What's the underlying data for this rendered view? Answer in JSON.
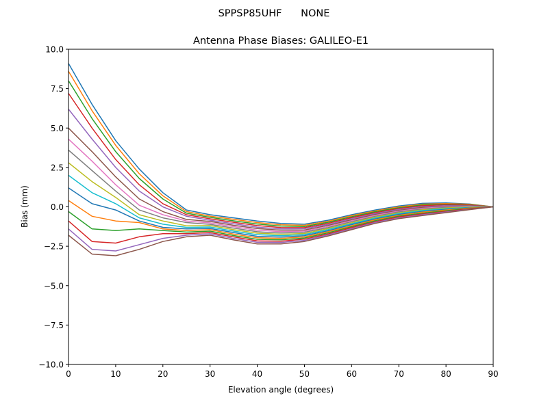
{
  "suptitle": "SPPSP85UHF      NONE",
  "chart_data": {
    "type": "line",
    "title": "Antenna Phase Biases: GALILEO-E1",
    "xlabel": "Elevation angle (degrees)",
    "ylabel": "Bias (mm)",
    "xlim": [
      0,
      90
    ],
    "ylim": [
      -10,
      10
    ],
    "xticks": [
      0,
      10,
      20,
      30,
      40,
      50,
      60,
      70,
      80,
      90
    ],
    "yticks": [
      -10,
      -7.5,
      -5,
      -2.5,
      0,
      2.5,
      5,
      7.5,
      10
    ],
    "ytick_labels": [
      "−10.0",
      "−7.5",
      "−5.0",
      "−2.5",
      "0.0",
      "2.5",
      "5.0",
      "7.5",
      "10.0"
    ],
    "grid": false,
    "legend": "none",
    "colors": [
      "#1f77b4",
      "#ff7f0e",
      "#2ca02c",
      "#d62728",
      "#9467bd",
      "#8c564b",
      "#e377c2",
      "#7f7f7f",
      "#bcbd22",
      "#17becf"
    ],
    "x": [
      0,
      5,
      10,
      15,
      20,
      25,
      30,
      35,
      40,
      45,
      50,
      55,
      60,
      65,
      70,
      75,
      80,
      85,
      90
    ],
    "series": [
      {
        "values": [
          9.1,
          6.5,
          4.2,
          2.4,
          0.9,
          -0.2,
          -0.5,
          -0.7,
          -0.9,
          -1.05,
          -1.1,
          -0.85,
          -0.5,
          -0.2,
          0.05,
          0.22,
          0.25,
          0.18,
          0
        ]
      },
      {
        "values": [
          8.6,
          6.1,
          3.9,
          2.1,
          0.7,
          -0.3,
          -0.59,
          -0.79,
          -1.0,
          -1.14,
          -1.17,
          -0.92,
          -0.56,
          -0.26,
          0.0,
          0.17,
          0.21,
          0.16,
          0
        ]
      },
      {
        "values": [
          8.0,
          5.6,
          3.5,
          1.8,
          0.5,
          -0.4,
          -0.67,
          -0.89,
          -1.09,
          -1.22,
          -1.25,
          -0.98,
          -0.63,
          -0.31,
          -0.06,
          0.12,
          0.17,
          0.13,
          0
        ]
      },
      {
        "values": [
          7.2,
          5.0,
          3.0,
          1.4,
          0.2,
          -0.5,
          -0.76,
          -0.98,
          -1.19,
          -1.31,
          -1.32,
          -1.05,
          -0.69,
          -0.37,
          -0.11,
          0.07,
          0.13,
          0.11,
          0
        ]
      },
      {
        "values": [
          6.2,
          4.3,
          2.5,
          1.0,
          0.0,
          -0.6,
          -0.85,
          -1.07,
          -1.29,
          -1.4,
          -1.39,
          -1.12,
          -0.75,
          -0.43,
          -0.16,
          0.01,
          0.08,
          0.08,
          0
        ]
      },
      {
        "values": [
          5.0,
          3.5,
          1.9,
          0.5,
          -0.3,
          -0.8,
          -0.93,
          -1.17,
          -1.38,
          -1.48,
          -1.47,
          -1.18,
          -0.82,
          -0.48,
          -0.22,
          -0.04,
          0.04,
          0.06,
          0
        ]
      },
      {
        "values": [
          4.3,
          2.9,
          1.4,
          0.1,
          -0.5,
          -0.9,
          -1.02,
          -1.26,
          -1.48,
          -1.57,
          -1.54,
          -1.25,
          -0.88,
          -0.54,
          -0.27,
          -0.09,
          0.0,
          0.04,
          0
        ]
      },
      {
        "values": [
          3.6,
          2.3,
          1.0,
          -0.2,
          -0.7,
          -1.0,
          -1.11,
          -1.35,
          -1.58,
          -1.66,
          -1.61,
          -1.32,
          -0.94,
          -0.6,
          -0.32,
          -0.14,
          -0.04,
          0.01,
          0
        ]
      },
      {
        "values": [
          2.8,
          1.6,
          0.6,
          -0.5,
          -0.9,
          -1.2,
          -1.19,
          -1.45,
          -1.67,
          -1.74,
          -1.69,
          -1.38,
          -1.01,
          -0.65,
          -0.38,
          -0.19,
          -0.08,
          -0.01,
          0
        ]
      },
      {
        "values": [
          2.0,
          0.9,
          0.2,
          -0.7,
          -1.1,
          -1.3,
          -1.28,
          -1.54,
          -1.77,
          -1.83,
          -1.76,
          -1.45,
          -1.07,
          -0.71,
          -0.43,
          -0.24,
          -0.12,
          -0.04,
          0
        ]
      },
      {
        "values": [
          1.2,
          0.2,
          -0.2,
          -0.9,
          -1.3,
          -1.4,
          -1.37,
          -1.63,
          -1.87,
          -1.92,
          -1.83,
          -1.52,
          -1.13,
          -0.77,
          -0.48,
          -0.29,
          -0.16,
          -0.06,
          0
        ]
      },
      {
        "values": [
          0.4,
          -0.6,
          -0.9,
          -1.0,
          -1.4,
          -1.5,
          -1.45,
          -1.73,
          -1.96,
          -2.0,
          -1.91,
          -1.58,
          -1.2,
          -0.82,
          -0.54,
          -0.34,
          -0.2,
          -0.08,
          0
        ]
      },
      {
        "values": [
          -0.3,
          -1.4,
          -1.5,
          -1.4,
          -1.5,
          -1.6,
          -1.54,
          -1.82,
          -2.06,
          -2.09,
          -1.98,
          -1.65,
          -1.26,
          -0.88,
          -0.59,
          -0.4,
          -0.25,
          -0.11,
          0
        ]
      },
      {
        "values": [
          -0.9,
          -2.2,
          -2.3,
          -1.9,
          -1.7,
          -1.7,
          -1.63,
          -1.91,
          -2.16,
          -2.18,
          -2.05,
          -1.72,
          -1.32,
          -0.94,
          -0.64,
          -0.45,
          -0.29,
          -0.13,
          0
        ]
      },
      {
        "values": [
          -1.4,
          -2.7,
          -2.8,
          -2.4,
          -2.0,
          -1.8,
          -1.71,
          -2.01,
          -2.25,
          -2.26,
          -2.13,
          -1.78,
          -1.39,
          -0.99,
          -0.7,
          -0.5,
          -0.33,
          -0.16,
          0
        ]
      },
      {
        "values": [
          -1.8,
          -3.0,
          -3.1,
          -2.7,
          -2.2,
          -1.9,
          -1.8,
          -2.1,
          -2.35,
          -2.35,
          -2.2,
          -1.85,
          -1.45,
          -1.05,
          -0.75,
          -0.55,
          -0.37,
          -0.18,
          0
        ]
      }
    ]
  }
}
